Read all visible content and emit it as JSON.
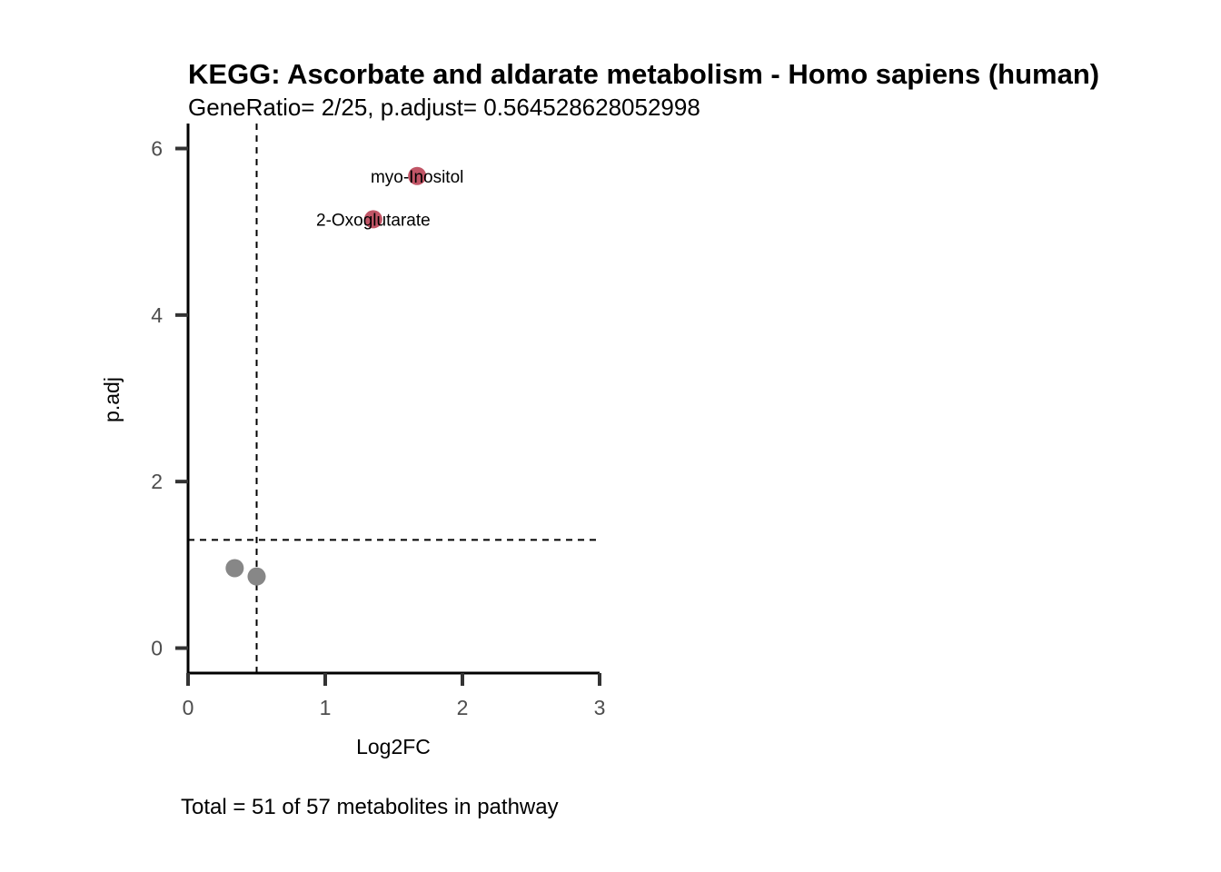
{
  "chart_data": {
    "type": "scatter",
    "title": "KEGG: Ascorbate and aldarate metabolism - Homo sapiens (human)",
    "subtitle": "GeneRatio= 2/25, p.adjust= 0.564528628052998",
    "caption": "Total = 51 of 57 metabolites in pathway",
    "xlabel": "Log2FC",
    "ylabel": "p.adj",
    "xlim": [
      0,
      3
    ],
    "ylim": [
      -0.3,
      6.3
    ],
    "xticks": [
      0,
      1,
      2,
      3
    ],
    "yticks": [
      0,
      2,
      4,
      6
    ],
    "xtick_labels": [
      "0",
      "1",
      "2",
      "3"
    ],
    "ytick_labels": [
      "0",
      "2",
      "4",
      "6"
    ],
    "thresholds": {
      "vertical_x": 0.5,
      "horizontal_y": 1.3
    },
    "grid": false,
    "colors": {
      "significant": "#c15566",
      "not_significant": "#878787",
      "axis": "#000000",
      "ticks": "#333333",
      "reference_lines": "#000000"
    },
    "points": [
      {
        "x": 1.67,
        "y": 5.67,
        "label": "myo-Inositol",
        "significant": true
      },
      {
        "x": 1.35,
        "y": 5.15,
        "label": "2-Oxoglutarate",
        "significant": true
      },
      {
        "x": 0.34,
        "y": 0.96,
        "label": "",
        "significant": false
      },
      {
        "x": 0.5,
        "y": 0.86,
        "label": "",
        "significant": false
      }
    ]
  }
}
